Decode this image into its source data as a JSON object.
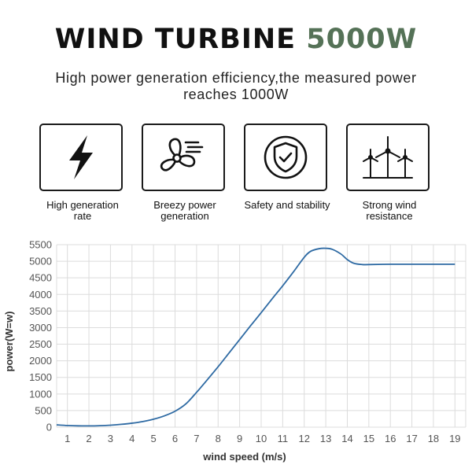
{
  "header": {
    "title_main": "WIND TURBINE",
    "title_accent": "5000W",
    "subtitle": "High power generation efficiency,the measured power reaches 1000W"
  },
  "features": [
    {
      "icon": "lightning-icon",
      "label": "High generation rate"
    },
    {
      "icon": "fan-wind-icon",
      "label": "Breezy power generation"
    },
    {
      "icon": "shield-check-icon",
      "label": "Safety and stability"
    },
    {
      "icon": "wind-turbines-icon",
      "label": "Strong wind resistance"
    }
  ],
  "colors": {
    "accent": "#557257",
    "line": "#2e6aa3",
    "grid": "#dcdcdc"
  },
  "chart_data": {
    "type": "line",
    "xlabel": "wind speed (m/s)",
    "ylabel": "power(W=w)",
    "x_ticks": [
      1,
      2,
      3,
      4,
      5,
      6,
      7,
      8,
      9,
      10,
      11,
      12,
      13,
      14,
      15,
      16,
      17,
      18,
      19
    ],
    "y_ticks": [
      0,
      500,
      1000,
      1500,
      2000,
      2500,
      3000,
      3500,
      4000,
      4500,
      5000,
      5500
    ],
    "xlim": [
      0.5,
      19.5
    ],
    "ylim": [
      0,
      5500
    ],
    "grid": true,
    "series": [
      {
        "points": [
          [
            0.5,
            70
          ],
          [
            1,
            50
          ],
          [
            1.5,
            40
          ],
          [
            2,
            38
          ],
          [
            2.5,
            45
          ],
          [
            3,
            60
          ],
          [
            3.5,
            85
          ],
          [
            4,
            120
          ],
          [
            4.5,
            170
          ],
          [
            5,
            240
          ],
          [
            5.5,
            340
          ],
          [
            6,
            480
          ],
          [
            6.5,
            700
          ],
          [
            7,
            1050
          ],
          [
            7.5,
            1430
          ],
          [
            8,
            1820
          ],
          [
            8.5,
            2230
          ],
          [
            9,
            2640
          ],
          [
            9.5,
            3050
          ],
          [
            10,
            3450
          ],
          [
            10.5,
            3860
          ],
          [
            11,
            4260
          ],
          [
            11.5,
            4680
          ],
          [
            12,
            5120
          ],
          [
            12.3,
            5300
          ],
          [
            12.7,
            5380
          ],
          [
            13,
            5390
          ],
          [
            13.3,
            5360
          ],
          [
            13.7,
            5220
          ],
          [
            14,
            5050
          ],
          [
            14.3,
            4940
          ],
          [
            14.7,
            4900
          ],
          [
            15,
            4900
          ],
          [
            16,
            4910
          ],
          [
            17,
            4910
          ],
          [
            18,
            4910
          ],
          [
            19,
            4910
          ]
        ]
      }
    ]
  }
}
